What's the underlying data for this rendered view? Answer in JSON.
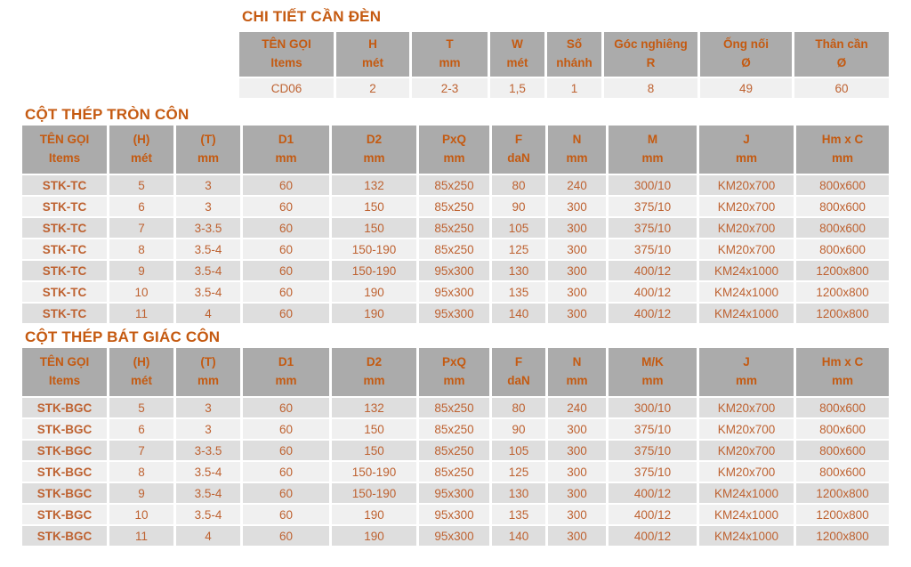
{
  "colors": {
    "title_text": "#C55A11",
    "header_bg": "#ABABAB",
    "header_text": "#C45A11",
    "cell_text": "#BE6231",
    "row_dark": "#DEDEDE",
    "row_light": "#F0F0F0",
    "page_bg": "#FFFFFF"
  },
  "tables": [
    {
      "title": "CHI TIẾT CẦN ĐÈN",
      "headers": [
        [
          "TÊN GỌI",
          "Items"
        ],
        [
          "H",
          "mét"
        ],
        [
          "T",
          "mm"
        ],
        [
          "W",
          "mét"
        ],
        [
          "Số",
          "nhánh"
        ],
        [
          "Góc nghiêng",
          "R"
        ],
        [
          "Ống nối",
          "Ø"
        ],
        [
          "Thân cần",
          "Ø"
        ]
      ],
      "rows": [
        [
          "CD06",
          "2",
          "2-3",
          "1,5",
          "1",
          "8",
          "49",
          "60"
        ]
      ]
    },
    {
      "title": "CỘT THÉP TRÒN CÔN",
      "headers": [
        [
          "TÊN GỌI",
          "Items"
        ],
        [
          "(H)",
          "mét"
        ],
        [
          "(T)",
          "mm"
        ],
        [
          "D1",
          "mm"
        ],
        [
          "D2",
          "mm"
        ],
        [
          "PxQ",
          "mm"
        ],
        [
          "F",
          "daN"
        ],
        [
          "N",
          "mm"
        ],
        [
          "M",
          "mm"
        ],
        [
          "J",
          "mm"
        ],
        [
          "Hm x C",
          "mm"
        ]
      ],
      "rows": [
        [
          "STK-TC",
          "5",
          "3",
          "60",
          "132",
          "85x250",
          "80",
          "240",
          "300/10",
          "KM20x700",
          "800x600"
        ],
        [
          "STK-TC",
          "6",
          "3",
          "60",
          "150",
          "85x250",
          "90",
          "300",
          "375/10",
          "KM20x700",
          "800x600"
        ],
        [
          "STK-TC",
          "7",
          "3-3.5",
          "60",
          "150",
          "85x250",
          "105",
          "300",
          "375/10",
          "KM20x700",
          "800x600"
        ],
        [
          "STK-TC",
          "8",
          "3.5-4",
          "60",
          "150-190",
          "85x250",
          "125",
          "300",
          "375/10",
          "KM20x700",
          "800x600"
        ],
        [
          "STK-TC",
          "9",
          "3.5-4",
          "60",
          "150-190",
          "95x300",
          "130",
          "300",
          "400/12",
          "KM24x1000",
          "1200x800"
        ],
        [
          "STK-TC",
          "10",
          "3.5-4",
          "60",
          "190",
          "95x300",
          "135",
          "300",
          "400/12",
          "KM24x1000",
          "1200x800"
        ],
        [
          "STK-TC",
          "11",
          "4",
          "60",
          "190",
          "95x300",
          "140",
          "300",
          "400/12",
          "KM24x1000",
          "1200x800"
        ]
      ]
    },
    {
      "title": "CỘT THÉP BÁT GIÁC CÔN",
      "headers": [
        [
          "TÊN GỌI",
          "Items"
        ],
        [
          "(H)",
          "mét"
        ],
        [
          "(T)",
          "mm"
        ],
        [
          "D1",
          "mm"
        ],
        [
          "D2",
          "mm"
        ],
        [
          "PxQ",
          "mm"
        ],
        [
          "F",
          "daN"
        ],
        [
          "N",
          "mm"
        ],
        [
          "M/K",
          "mm"
        ],
        [
          "J",
          "mm"
        ],
        [
          "Hm x C",
          "mm"
        ]
      ],
      "rows": [
        [
          "STK-BGC",
          "5",
          "3",
          "60",
          "132",
          "85x250",
          "80",
          "240",
          "300/10",
          "KM20x700",
          "800x600"
        ],
        [
          "STK-BGC",
          "6",
          "3",
          "60",
          "150",
          "85x250",
          "90",
          "300",
          "375/10",
          "KM20x700",
          "800x600"
        ],
        [
          "STK-BGC",
          "7",
          "3-3.5",
          "60",
          "150",
          "85x250",
          "105",
          "300",
          "375/10",
          "KM20x700",
          "800x600"
        ],
        [
          "STK-BGC",
          "8",
          "3.5-4",
          "60",
          "150-190",
          "85x250",
          "125",
          "300",
          "375/10",
          "KM20x700",
          "800x600"
        ],
        [
          "STK-BGC",
          "9",
          "3.5-4",
          "60",
          "150-190",
          "95x300",
          "130",
          "300",
          "400/12",
          "KM24x1000",
          "1200x800"
        ],
        [
          "STK-BGC",
          "10",
          "3.5-4",
          "60",
          "190",
          "95x300",
          "135",
          "300",
          "400/12",
          "KM24x1000",
          "1200x800"
        ],
        [
          "STK-BGC",
          "11",
          "4",
          "60",
          "190",
          "95x300",
          "140",
          "300",
          "400/12",
          "KM24x1000",
          "1200x800"
        ]
      ]
    }
  ]
}
